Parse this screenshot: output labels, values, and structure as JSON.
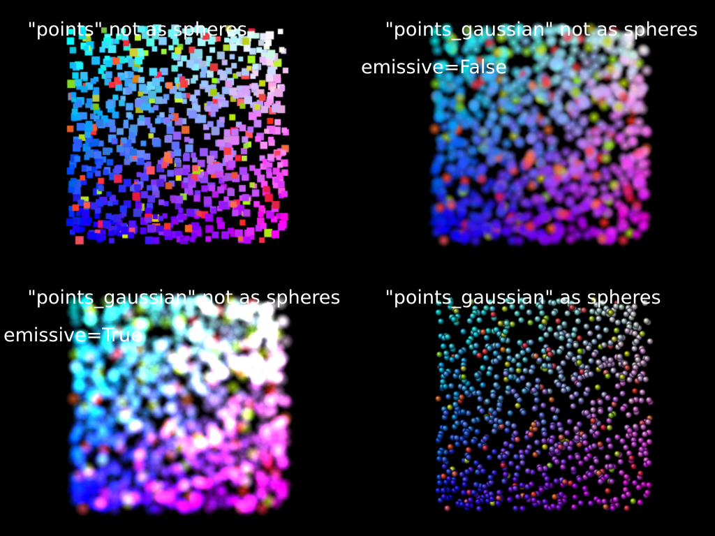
{
  "window": {
    "title": ""
  },
  "viewports": [
    {
      "id": "vp-tl",
      "style": "squares",
      "label": "\"points\" not as spheres",
      "label_line2": ""
    },
    {
      "id": "vp-tr",
      "style": "gauss",
      "label": "\"points_gaussian\" not as spheres",
      "label_line2": "emissive=False"
    },
    {
      "id": "vp-bl",
      "style": "emissive",
      "label": "\"points_gaussian\" not as spheres",
      "label_line2": "emissive=True"
    },
    {
      "id": "vp-br",
      "style": "spheres",
      "label": "\"points_gaussian\" as spheres",
      "label_line2": ""
    }
  ],
  "colors": {
    "background": "#000000",
    "label": "#ffffff",
    "corner_tl": "#00ffff",
    "corner_tr": "#ffffff",
    "corner_bl": "#0000ff",
    "corner_br": "#ff00ff"
  }
}
